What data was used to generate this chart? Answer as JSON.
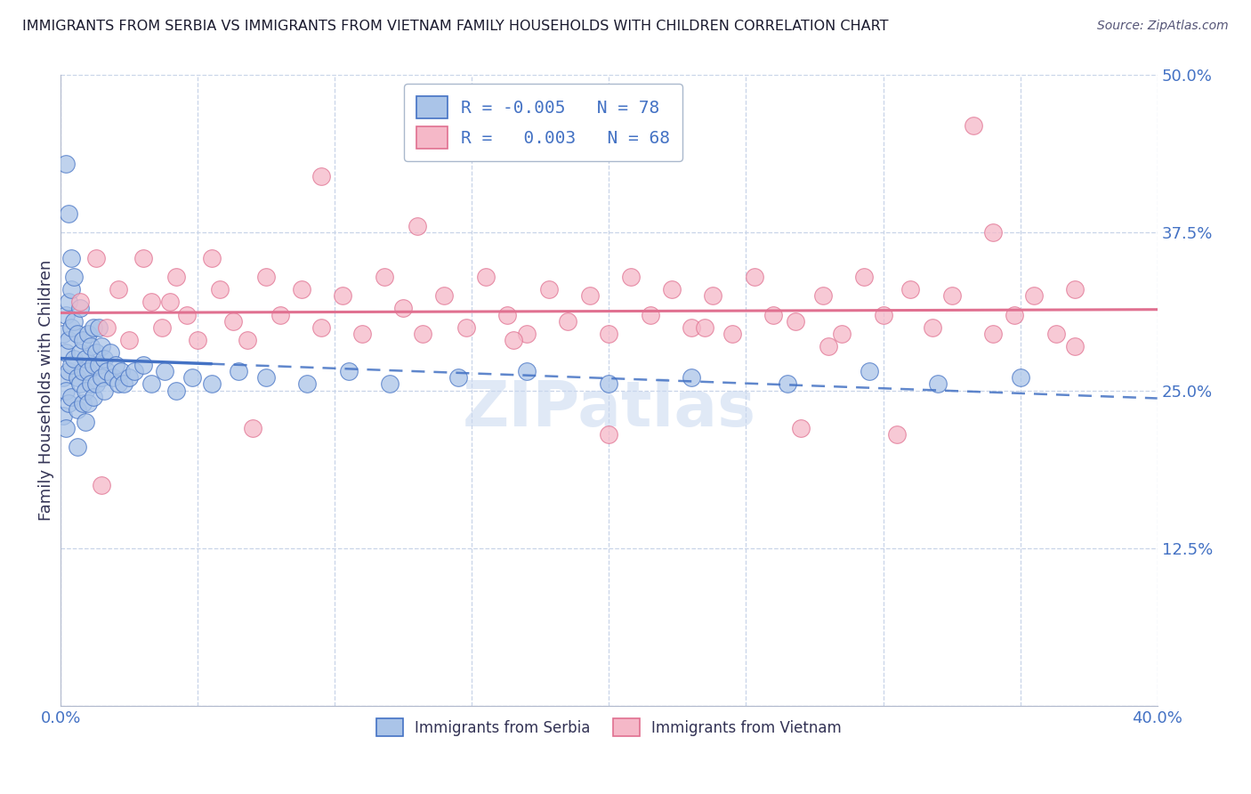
{
  "title": "IMMIGRANTS FROM SERBIA VS IMMIGRANTS FROM VIETNAM FAMILY HOUSEHOLDS WITH CHILDREN CORRELATION CHART",
  "source": "Source: ZipAtlas.com",
  "ylabel": "Family Households with Children",
  "legend_blue_label": "Immigrants from Serbia",
  "legend_pink_label": "Immigrants from Vietnam",
  "legend_blue_r": "-0.005",
  "legend_blue_n": "78",
  "legend_pink_r": "0.003",
  "legend_pink_n": "68",
  "xlim": [
    0.0,
    0.4
  ],
  "ylim": [
    0.0,
    0.5
  ],
  "blue_color": "#aac4e8",
  "pink_color": "#f5b8c8",
  "blue_edge_color": "#4472c4",
  "pink_edge_color": "#e07090",
  "blue_line_color": "#4472c4",
  "pink_line_color": "#e07090",
  "background_color": "#ffffff",
  "grid_color": "#c8d4e8",
  "title_color": "#1a1a2e",
  "source_color": "#555577",
  "axis_label_color": "#4472c4",
  "ylabel_color": "#333355",
  "watermark_color": "#c8d8f0",
  "blue_x": [
    0.001,
    0.001,
    0.001,
    0.002,
    0.002,
    0.002,
    0.002,
    0.003,
    0.003,
    0.003,
    0.003,
    0.004,
    0.004,
    0.004,
    0.004,
    0.005,
    0.005,
    0.005,
    0.006,
    0.006,
    0.006,
    0.007,
    0.007,
    0.007,
    0.008,
    0.008,
    0.008,
    0.009,
    0.009,
    0.009,
    0.01,
    0.01,
    0.01,
    0.011,
    0.011,
    0.012,
    0.012,
    0.012,
    0.013,
    0.013,
    0.014,
    0.014,
    0.015,
    0.015,
    0.016,
    0.016,
    0.017,
    0.018,
    0.019,
    0.02,
    0.021,
    0.022,
    0.023,
    0.025,
    0.027,
    0.03,
    0.033,
    0.038,
    0.042,
    0.048,
    0.055,
    0.065,
    0.075,
    0.09,
    0.105,
    0.12,
    0.145,
    0.17,
    0.2,
    0.23,
    0.265,
    0.295,
    0.32,
    0.35,
    0.002,
    0.003,
    0.004,
    0.006
  ],
  "blue_y": [
    0.295,
    0.26,
    0.23,
    0.31,
    0.28,
    0.25,
    0.22,
    0.32,
    0.29,
    0.265,
    0.24,
    0.33,
    0.3,
    0.27,
    0.245,
    0.34,
    0.305,
    0.275,
    0.295,
    0.26,
    0.235,
    0.315,
    0.28,
    0.255,
    0.29,
    0.265,
    0.24,
    0.275,
    0.25,
    0.225,
    0.295,
    0.265,
    0.24,
    0.285,
    0.255,
    0.3,
    0.27,
    0.245,
    0.28,
    0.255,
    0.3,
    0.27,
    0.285,
    0.26,
    0.275,
    0.25,
    0.265,
    0.28,
    0.26,
    0.27,
    0.255,
    0.265,
    0.255,
    0.26,
    0.265,
    0.27,
    0.255,
    0.265,
    0.25,
    0.26,
    0.255,
    0.265,
    0.26,
    0.255,
    0.265,
    0.255,
    0.26,
    0.265,
    0.255,
    0.26,
    0.255,
    0.265,
    0.255,
    0.26,
    0.43,
    0.39,
    0.355,
    0.205
  ],
  "pink_x": [
    0.007,
    0.013,
    0.017,
    0.021,
    0.025,
    0.03,
    0.033,
    0.037,
    0.042,
    0.046,
    0.05,
    0.055,
    0.058,
    0.063,
    0.068,
    0.075,
    0.08,
    0.088,
    0.095,
    0.103,
    0.11,
    0.118,
    0.125,
    0.132,
    0.14,
    0.148,
    0.155,
    0.163,
    0.17,
    0.178,
    0.185,
    0.193,
    0.2,
    0.208,
    0.215,
    0.223,
    0.23,
    0.238,
    0.245,
    0.253,
    0.26,
    0.27,
    0.278,
    0.285,
    0.293,
    0.3,
    0.31,
    0.318,
    0.325,
    0.333,
    0.34,
    0.348,
    0.355,
    0.363,
    0.37,
    0.095,
    0.13,
    0.165,
    0.2,
    0.235,
    0.268,
    0.305,
    0.34,
    0.37,
    0.015,
    0.04,
    0.07,
    0.28
  ],
  "pink_y": [
    0.32,
    0.355,
    0.3,
    0.33,
    0.29,
    0.355,
    0.32,
    0.3,
    0.34,
    0.31,
    0.29,
    0.355,
    0.33,
    0.305,
    0.29,
    0.34,
    0.31,
    0.33,
    0.3,
    0.325,
    0.295,
    0.34,
    0.315,
    0.295,
    0.325,
    0.3,
    0.34,
    0.31,
    0.295,
    0.33,
    0.305,
    0.325,
    0.295,
    0.34,
    0.31,
    0.33,
    0.3,
    0.325,
    0.295,
    0.34,
    0.31,
    0.22,
    0.325,
    0.295,
    0.34,
    0.31,
    0.33,
    0.3,
    0.325,
    0.46,
    0.295,
    0.31,
    0.325,
    0.295,
    0.285,
    0.42,
    0.38,
    0.29,
    0.215,
    0.3,
    0.305,
    0.215,
    0.375,
    0.33,
    0.175,
    0.32,
    0.22,
    0.285
  ]
}
